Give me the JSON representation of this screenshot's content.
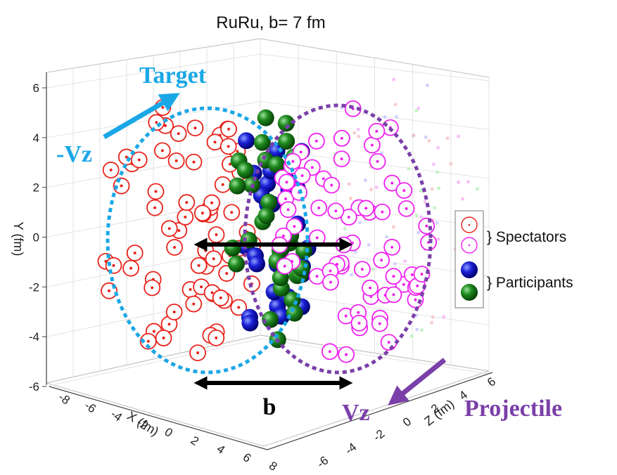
{
  "chart_data": {
    "type": "scatter",
    "title": "RuRu, b= 7 fm",
    "xlabel": "X (fm)",
    "ylabel": "Y (fm)",
    "zlabel": "Z (fm)",
    "xlim": [
      -8,
      8
    ],
    "ylim": [
      -6,
      6
    ],
    "zlim": [
      -6,
      6
    ],
    "x_ticks": [
      "-8",
      "-6",
      "-4",
      "-2",
      "0",
      "2",
      "4",
      "6",
      "8"
    ],
    "y_ticks": [
      "-6",
      "-4",
      "-2",
      "0",
      "2",
      "4",
      "6"
    ],
    "z_ticks": [
      "-6",
      "-4",
      "-2",
      "0",
      "2",
      "4",
      "6"
    ],
    "grid": true,
    "legend_position": "right",
    "legend": {
      "spectators_label": "} Spectators",
      "participants_label": "} Participants"
    },
    "annotations": {
      "target": "Target",
      "target_velocity": "-Vz",
      "projectile": "Projectile",
      "projectile_velocity": "Vz",
      "impact_parameter": "b"
    },
    "series": [
      {
        "role": "target-spectators",
        "color": "#e8221a",
        "count": 70
      },
      {
        "role": "projectile-spectators",
        "color": "#f020f0",
        "count": 70
      },
      {
        "role": "participants-blue",
        "color": "#1010c8",
        "count": 32
      },
      {
        "role": "participants-green",
        "color": "#1e7a1e",
        "count": 32
      }
    ],
    "colors": {
      "target": "#1aa7e6",
      "projectile": "#7a3fa8",
      "arrow_b": "#000000"
    }
  }
}
